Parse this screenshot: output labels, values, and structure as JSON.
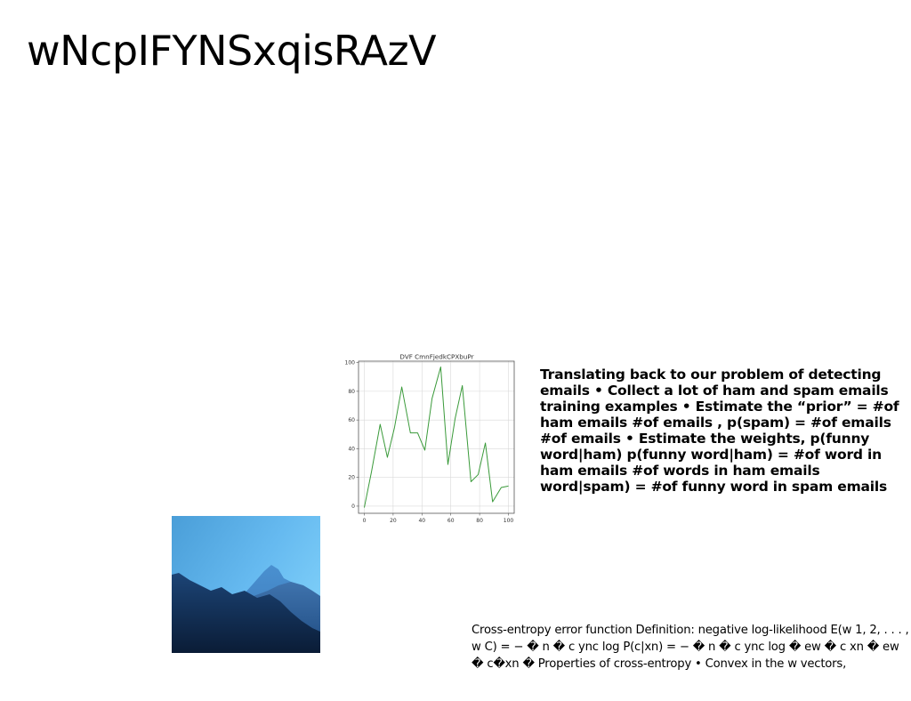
{
  "slide": {
    "title": "wNcpIFYNSxqisRAzV"
  },
  "body_text": "Translating back to our problem of detecting emails • Collect a lot of ham and spam emails training examples • Estimate the “prior” = #of ham emails #of emails , p(spam) = #of emails #of emails • Estimate the weights, p(funny word|ham) p(funny word|ham) = #of word in ham emails #of words in ham emails word|spam) = #of funny word in spam emails",
  "footer_text": "Cross-entropy error function Definition: negative log-likelihood E(w 1, 2, . . . , w C) = − � n � c ync log P(c|xn) = − � n � c ync log � ew � c xn � ew � c�xn � Properties of cross-entropy • Convex in the w vectors,",
  "image": {
    "icon": "mountain-landscape-image",
    "sky_color": "#6ec3f2",
    "ridge_color": "#0f2746"
  },
  "chart_data": {
    "type": "line",
    "title": "DVF CmnFjedkCPXbuPr",
    "xlabel": "",
    "ylabel": "",
    "xlim": [
      -4,
      104
    ],
    "ylim": [
      -5,
      101
    ],
    "xticks": [
      0,
      20,
      40,
      60,
      80,
      100
    ],
    "yticks": [
      0,
      20,
      40,
      60,
      80,
      100
    ],
    "grid": true,
    "line_color": "#3a9a3a",
    "series": [
      {
        "x": [
          0,
          5,
          11,
          16,
          21,
          26,
          32,
          37,
          42,
          47,
          53,
          58,
          63,
          68,
          74,
          79,
          84,
          89,
          95,
          100
        ],
        "y": [
          -1,
          24,
          57,
          34,
          55,
          83,
          51,
          51,
          39,
          75,
          97,
          29,
          61,
          84,
          17,
          22,
          44,
          3,
          13,
          14
        ]
      }
    ]
  }
}
